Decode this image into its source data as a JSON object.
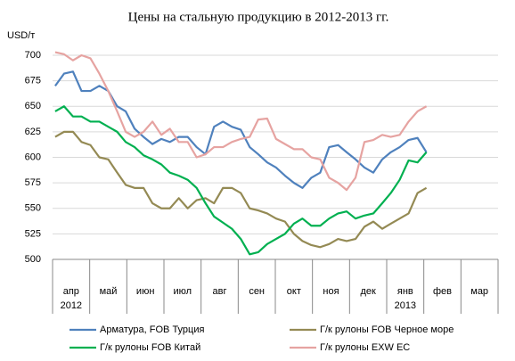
{
  "chart_data": {
    "type": "line",
    "title": "Цены на стальную продукцию в 2012-2013 гг.",
    "y_label": "USD/т",
    "categories": [
      "апр",
      "май",
      "июн",
      "июл",
      "авг",
      "сен",
      "окт",
      "ноя",
      "дек",
      "янв",
      "фев",
      "мар"
    ],
    "sublabels": [
      "2012",
      null,
      null,
      null,
      null,
      null,
      null,
      null,
      null,
      "2013",
      null,
      null
    ],
    "x": [
      0.07,
      0.31,
      0.55,
      0.78,
      1.02,
      1.26,
      1.5,
      1.74,
      1.97,
      2.21,
      2.45,
      2.69,
      2.93,
      3.16,
      3.4,
      3.64,
      3.88,
      4.12,
      4.35,
      4.59,
      4.83,
      5.07,
      5.31,
      5.54,
      5.78,
      6.02,
      6.26,
      6.5,
      6.73,
      6.97,
      7.21,
      7.45,
      7.69,
      7.92,
      8.16,
      8.4,
      8.64,
      8.88,
      9.11,
      9.35,
      9.59,
      9.83,
      10.07
    ],
    "xlim": [
      0,
      12
    ],
    "xticks": [
      0,
      1,
      2,
      3,
      4,
      5,
      6,
      7,
      8,
      9,
      10,
      11,
      12
    ],
    "ylim": [
      500,
      700
    ],
    "yticks": [
      500,
      525,
      550,
      575,
      600,
      625,
      650,
      675,
      700
    ],
    "grid": true,
    "series": [
      {
        "name": "Арматура, FOB Турция",
        "color": "#4f81bd",
        "values": [
          670,
          682,
          684,
          665,
          665,
          670,
          665,
          650,
          645,
          628,
          620,
          613,
          618,
          615,
          620,
          620,
          610,
          603,
          630,
          635,
          630,
          627,
          610,
          603,
          595,
          590,
          582,
          575,
          570,
          580,
          585,
          610,
          612,
          605,
          598,
          590,
          585,
          598,
          605,
          610,
          617,
          619,
          605
        ]
      },
      {
        "name": "Г/к рулоны FOB Черное море",
        "color": "#948a54",
        "values": [
          620,
          625,
          625,
          615,
          612,
          600,
          598,
          585,
          573,
          570,
          570,
          555,
          550,
          550,
          560,
          550,
          558,
          560,
          555,
          570,
          570,
          565,
          550,
          548,
          545,
          540,
          537,
          525,
          518,
          514,
          512,
          515,
          520,
          518,
          520,
          532,
          537,
          530,
          535,
          540,
          545,
          565,
          570
        ]
      },
      {
        "name": "Г/к рулоны FOB Китай",
        "color": "#00b050",
        "values": [
          645,
          650,
          640,
          640,
          635,
          635,
          630,
          625,
          615,
          610,
          602,
          598,
          593,
          585,
          582,
          578,
          570,
          555,
          542,
          536,
          530,
          520,
          505,
          507,
          515,
          520,
          525,
          535,
          540,
          533,
          533,
          540,
          545,
          547,
          540,
          543,
          545,
          555,
          565,
          578,
          597,
          595,
          605
        ]
      },
      {
        "name": "Г/к рулоны EXW ЕС",
        "color": "#e6a3a1",
        "values": [
          703,
          701,
          695,
          700,
          697,
          682,
          665,
          645,
          625,
          620,
          625,
          635,
          622,
          628,
          615,
          615,
          600,
          603,
          610,
          610,
          615,
          618,
          620,
          637,
          638,
          618,
          613,
          608,
          608,
          600,
          598,
          580,
          575,
          568,
          580,
          615,
          617,
          622,
          620,
          622,
          635,
          645,
          650
        ]
      }
    ]
  }
}
